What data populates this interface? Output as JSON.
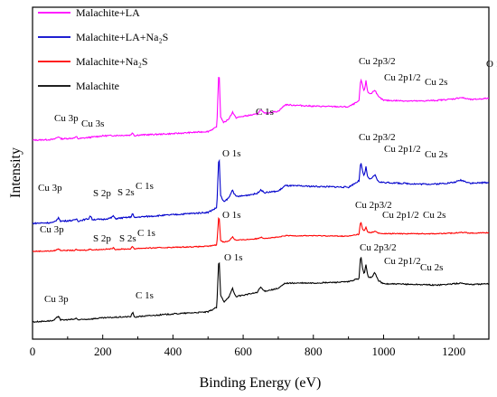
{
  "chart_data": {
    "type": "line",
    "xlabel": "Binding Energy (eV)",
    "ylabel": "Intensity",
    "xlim": [
      0,
      1300
    ],
    "x_ticks": [
      0,
      200,
      400,
      600,
      800,
      1000,
      1200
    ],
    "y_ticks_shown": false,
    "legend": {
      "placement": "top-left",
      "entries": [
        {
          "label": "Malachite+LA",
          "color": "#ff00ff"
        },
        {
          "label": "Malachite+LA+Na₂S",
          "color": "#0000cc"
        },
        {
          "label": "Malachite+Na₂S",
          "color": "#ff0000"
        },
        {
          "label": "Malachite",
          "color": "#000000"
        }
      ]
    },
    "series": [
      {
        "name": "Malachite+LA",
        "color": "#ff00ff",
        "x": [
          0,
          60,
          75,
          80,
          90,
          120,
          125,
          130,
          200,
          280,
          285,
          290,
          300,
          400,
          500,
          525,
          531,
          536,
          545,
          560,
          570,
          575,
          580,
          600,
          640,
          650,
          660,
          700,
          720,
          800,
          900,
          930,
          935,
          940,
          945,
          950,
          955,
          965,
          975,
          985,
          1000,
          1100,
          1150,
          1200,
          1220,
          1250,
          1300
        ],
        "y": [
          0.0,
          0.01,
          0.05,
          0.02,
          0.02,
          0.03,
          0.05,
          0.02,
          0.06,
          0.07,
          0.11,
          0.06,
          0.07,
          0.09,
          0.12,
          0.18,
          1.0,
          0.32,
          0.24,
          0.3,
          0.39,
          0.34,
          0.31,
          0.33,
          0.36,
          0.42,
          0.37,
          0.4,
          0.49,
          0.47,
          0.46,
          0.54,
          0.85,
          0.75,
          0.68,
          0.82,
          0.66,
          0.64,
          0.7,
          0.6,
          0.55,
          0.54,
          0.55,
          0.57,
          0.59,
          0.56,
          0.58
        ]
      },
      {
        "name": "Malachite+LA+Na₂S",
        "color": "#0000cc",
        "x": [
          0,
          60,
          75,
          80,
          90,
          120,
          125,
          130,
          160,
          165,
          170,
          200,
          225,
          230,
          235,
          280,
          285,
          290,
          300,
          400,
          500,
          525,
          531,
          536,
          545,
          560,
          570,
          575,
          580,
          600,
          640,
          650,
          660,
          700,
          720,
          800,
          900,
          930,
          935,
          940,
          945,
          950,
          955,
          965,
          975,
          985,
          1000,
          1100,
          1150,
          1200,
          1220,
          1250,
          1300
        ],
        "y": [
          0.0,
          0.01,
          0.07,
          0.03,
          0.03,
          0.04,
          0.06,
          0.03,
          0.06,
          0.1,
          0.05,
          0.05,
          0.07,
          0.1,
          0.06,
          0.08,
          0.13,
          0.07,
          0.08,
          0.11,
          0.14,
          0.2,
          0.9,
          0.35,
          0.27,
          0.33,
          0.43,
          0.37,
          0.34,
          0.35,
          0.38,
          0.43,
          0.39,
          0.41,
          0.48,
          0.47,
          0.46,
          0.54,
          0.78,
          0.66,
          0.6,
          0.72,
          0.58,
          0.56,
          0.62,
          0.53,
          0.52,
          0.5,
          0.5,
          0.52,
          0.55,
          0.51,
          0.52
        ]
      },
      {
        "name": "Malachite+Na₂S",
        "color": "#ff0000",
        "x": [
          0,
          60,
          75,
          80,
          90,
          120,
          125,
          130,
          160,
          165,
          170,
          200,
          225,
          230,
          235,
          280,
          285,
          290,
          300,
          400,
          500,
          525,
          531,
          536,
          545,
          560,
          570,
          575,
          580,
          600,
          640,
          650,
          660,
          700,
          720,
          800,
          900,
          930,
          935,
          940,
          945,
          950,
          955,
          965,
          975,
          985,
          1000,
          1100,
          1150,
          1200,
          1220,
          1250,
          1300
        ],
        "y": [
          0.0,
          0.01,
          0.05,
          0.02,
          0.02,
          0.02,
          0.04,
          0.02,
          0.03,
          0.05,
          0.03,
          0.04,
          0.05,
          0.07,
          0.04,
          0.05,
          0.1,
          0.05,
          0.06,
          0.08,
          0.1,
          0.13,
          0.75,
          0.22,
          0.18,
          0.21,
          0.29,
          0.24,
          0.22,
          0.23,
          0.25,
          0.28,
          0.26,
          0.28,
          0.31,
          0.31,
          0.3,
          0.34,
          0.6,
          0.44,
          0.4,
          0.48,
          0.38,
          0.37,
          0.4,
          0.36,
          0.35,
          0.35,
          0.35,
          0.36,
          0.38,
          0.36,
          0.37
        ]
      },
      {
        "name": "Malachite",
        "color": "#000000",
        "x": [
          0,
          60,
          75,
          80,
          90,
          120,
          125,
          130,
          200,
          280,
          285,
          290,
          300,
          400,
          500,
          525,
          531,
          536,
          545,
          560,
          570,
          575,
          580,
          600,
          640,
          650,
          660,
          700,
          720,
          800,
          900,
          930,
          935,
          940,
          945,
          950,
          955,
          965,
          975,
          985,
          1000,
          1100,
          1150,
          1200,
          1220,
          1250,
          1300
        ],
        "y": [
          0.0,
          0.02,
          0.09,
          0.03,
          0.03,
          0.04,
          0.06,
          0.03,
          0.06,
          0.08,
          0.15,
          0.07,
          0.08,
          0.12,
          0.15,
          0.22,
          1.0,
          0.4,
          0.3,
          0.38,
          0.5,
          0.42,
          0.38,
          0.4,
          0.44,
          0.52,
          0.46,
          0.5,
          0.58,
          0.58,
          0.6,
          0.65,
          1.0,
          0.8,
          0.72,
          0.86,
          0.68,
          0.66,
          0.74,
          0.62,
          0.57,
          0.56,
          0.55,
          0.57,
          0.58,
          0.56,
          0.57
        ]
      }
    ],
    "annotations": [
      {
        "series": "Malachite+LA",
        "items": [
          "Cu 3p",
          "Cu 3s",
          "C 1s",
          "O 1s",
          "Cu 2p3/2",
          "Cu 2p1/2",
          "Cu 2s"
        ]
      },
      {
        "series": "Malachite+LA+Na₂S",
        "items": [
          "Cu 3p",
          "S 2p",
          "S 2s",
          "C 1s",
          "O 1s",
          "Cu 2p3/2",
          "Cu 2p1/2",
          "Cu 2s"
        ]
      },
      {
        "series": "Malachite+Na₂S",
        "items": [
          "Cu 3p",
          "S 2p",
          "S 2s",
          "C 1s",
          "O 1s",
          "Cu 2p3/2",
          "Cu 2p1/2",
          "Cu 2s"
        ]
      },
      {
        "series": "Malachite",
        "items": [
          "Cu 3p",
          "C 1s",
          "O 1s",
          "Cu 2p3/2",
          "Cu 2p1/2",
          "Cu 2s"
        ]
      }
    ]
  }
}
